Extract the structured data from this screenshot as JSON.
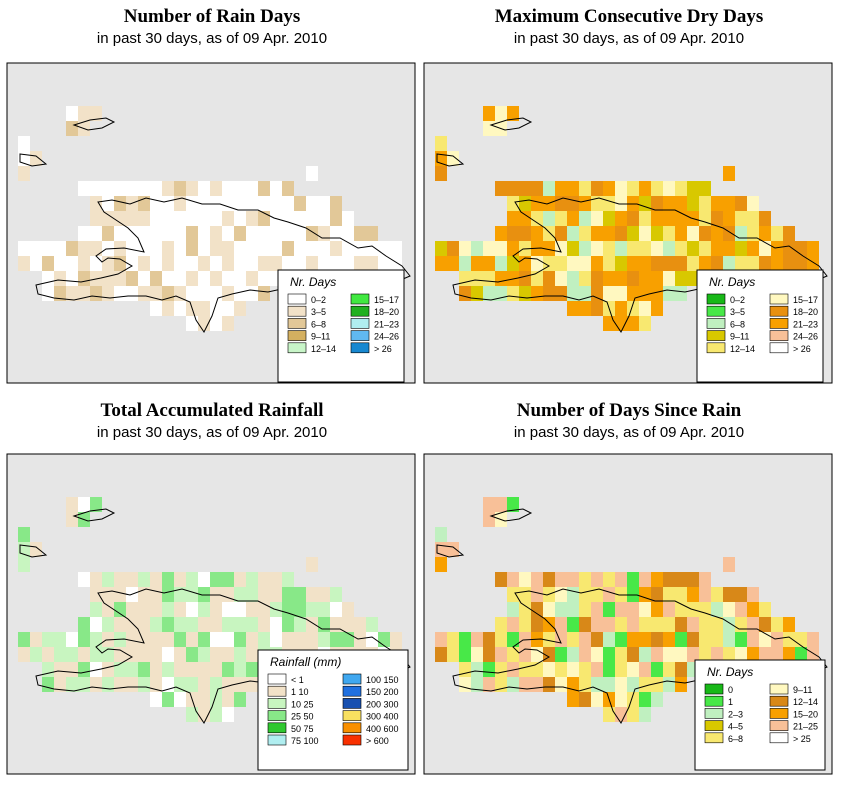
{
  "colors": {
    "background": "#e6e6e6",
    "outline": "#000000"
  },
  "panels": [
    {
      "id": "rain-days",
      "title": "Number of Rain Days",
      "subtitle": "in past 30 days, as of  09 Apr. 2010",
      "legend_title": "Nr. Days",
      "legend": [
        {
          "label": "0–2",
          "color": "#ffffff"
        },
        {
          "label": "3–5",
          "color": "#f2e2c8"
        },
        {
          "label": "6–8",
          "color": "#e2c898"
        },
        {
          "label": "9–11",
          "color": "#d4b060"
        },
        {
          "label": "12–14",
          "color": "#c8f5c8"
        },
        {
          "label": "15–17",
          "color": "#40e840"
        },
        {
          "label": "18–20",
          "color": "#20b020"
        },
        {
          "label": "21–23",
          "color": "#b0eef0"
        },
        {
          "label": "24–26",
          "color": "#60b8f0"
        },
        {
          "label": "> 26",
          "color": "#1888d0"
        }
      ]
    },
    {
      "id": "dry-days",
      "title": "Maximum Consecutive Dry Days",
      "subtitle": "in past 30 days, as of  09 Apr. 2010",
      "legend_title": "Nr. Days",
      "legend": [
        {
          "label": "0–2",
          "color": "#18b818"
        },
        {
          "label": "3–5",
          "color": "#48e848"
        },
        {
          "label": "6–8",
          "color": "#c0f0c0"
        },
        {
          "label": "9–11",
          "color": "#d8c800"
        },
        {
          "label": "12–14",
          "color": "#f8e870"
        },
        {
          "label": "15–17",
          "color": "#fff8c0"
        },
        {
          "label": "18–20",
          "color": "#e89010"
        },
        {
          "label": "21–23",
          "color": "#f8a000"
        },
        {
          "label": "24–26",
          "color": "#f8c098"
        },
        {
          "label": "> 26",
          "color": "#ffffff"
        }
      ]
    },
    {
      "id": "rainfall",
      "title": "Total Accumulated Rainfall",
      "subtitle": "in past 30 days, as of  09 Apr. 2010",
      "legend_title": "Rainfall (mm)",
      "legend": [
        {
          "label": "< 1",
          "color": "#ffffff"
        },
        {
          "label": "1   10",
          "color": "#f2e2c8"
        },
        {
          "label": "10   25",
          "color": "#c8f5c0"
        },
        {
          "label": "25   50",
          "color": "#88e888"
        },
        {
          "label": "50   75",
          "color": "#30c830"
        },
        {
          "label": "75   100",
          "color": "#b0eef0"
        },
        {
          "label": "100   150",
          "color": "#40a8f0"
        },
        {
          "label": "150   200",
          "color": "#2070e0"
        },
        {
          "label": "200   300",
          "color": "#1850b0"
        },
        {
          "label": "300   400",
          "color": "#f8e060"
        },
        {
          "label": "400   600",
          "color": "#f89000"
        },
        {
          "label": "> 600",
          "color": "#f83000"
        }
      ]
    },
    {
      "id": "days-since-rain",
      "title": "Number of Days Since Rain",
      "subtitle": "in past 30 days, as of  09 Apr. 2010",
      "legend_title": "Nr. Days",
      "legend": [
        {
          "label": "0",
          "color": "#18b818"
        },
        {
          "label": "1",
          "color": "#48e848"
        },
        {
          "label": "2–3",
          "color": "#c0f0c0"
        },
        {
          "label": "4–5",
          "color": "#d8c800"
        },
        {
          "label": "6–8",
          "color": "#f8e870"
        },
        {
          "label": "9–11",
          "color": "#fff8c0"
        },
        {
          "label": "12–14",
          "color": "#d88818"
        },
        {
          "label": "15–20",
          "color": "#f8a000"
        },
        {
          "label": "21–25",
          "color": "#f8c098"
        },
        {
          "label": "> 25",
          "color": "#ffffff"
        }
      ]
    }
  ]
}
